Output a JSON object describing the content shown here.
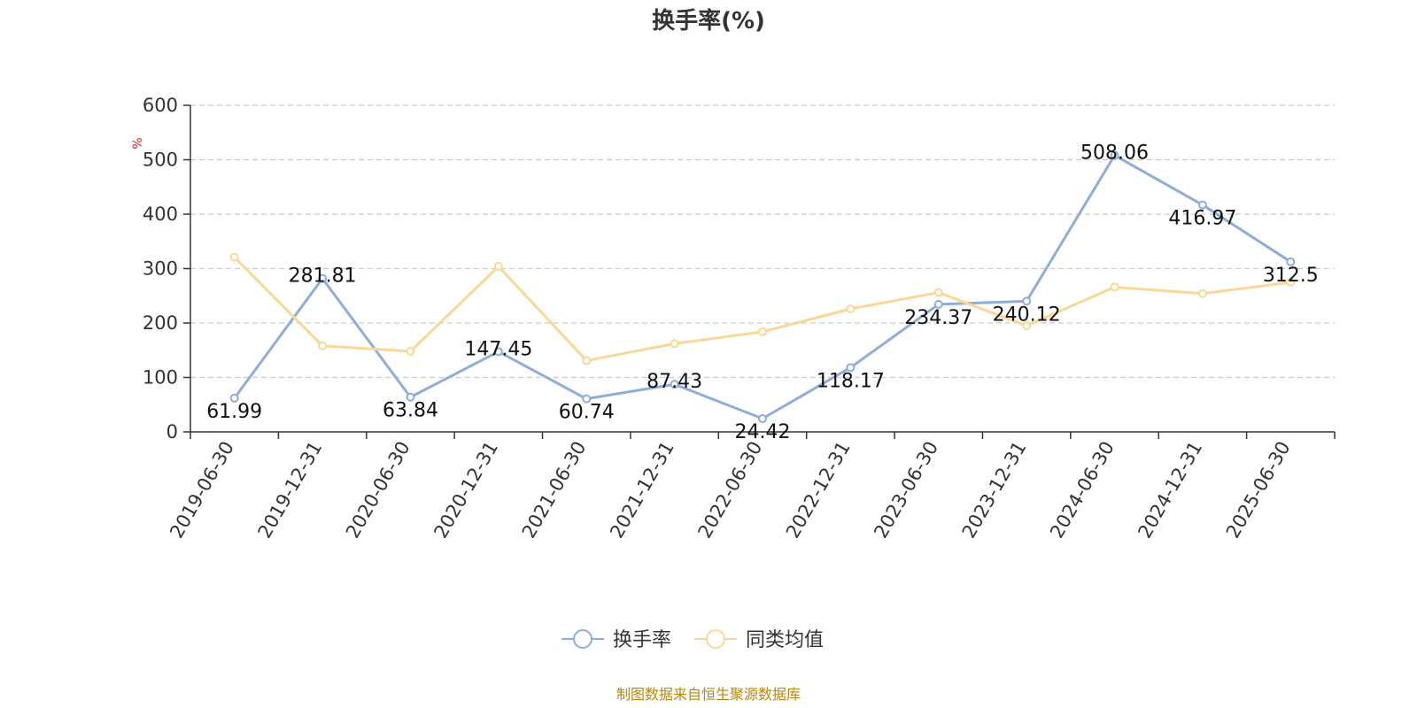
{
  "chart_data": {
    "type": "line",
    "title": "换手率(%)",
    "ylabel": "%",
    "xlabel": "",
    "ylim": [
      0,
      600
    ],
    "yticks": [
      0,
      100,
      200,
      300,
      400,
      500,
      600
    ],
    "grid": true,
    "legend_position": "bottom",
    "categories": [
      "2019-06-30",
      "2019-12-31",
      "2020-06-30",
      "2020-12-31",
      "2021-06-30",
      "2021-12-31",
      "2022-06-30",
      "2022-12-31",
      "2023-06-30",
      "2023-12-31",
      "2024-06-30",
      "2024-12-31",
      "2025-06-30"
    ],
    "series": [
      {
        "name": "换手率",
        "color": "#8eadd8",
        "values": [
          61.99,
          281.81,
          63.84,
          147.45,
          60.74,
          87.43,
          24.42,
          118.17,
          234.37,
          240.12,
          508.06,
          416.97,
          312.5
        ],
        "labels": [
          "61.99",
          "281.81",
          "63.84",
          "147.45",
          "60.74",
          "87.43",
          "24.42",
          "118.17",
          "234.37",
          "240.12",
          "508.06",
          "416.97",
          "312.5"
        ]
      },
      {
        "name": "同类均值",
        "color": "#f9d897",
        "values": [
          321,
          158,
          148,
          304,
          131,
          162,
          184,
          226,
          256,
          195,
          266,
          254,
          275
        ]
      }
    ],
    "source": "制图数据来自恒生聚源数据库"
  }
}
